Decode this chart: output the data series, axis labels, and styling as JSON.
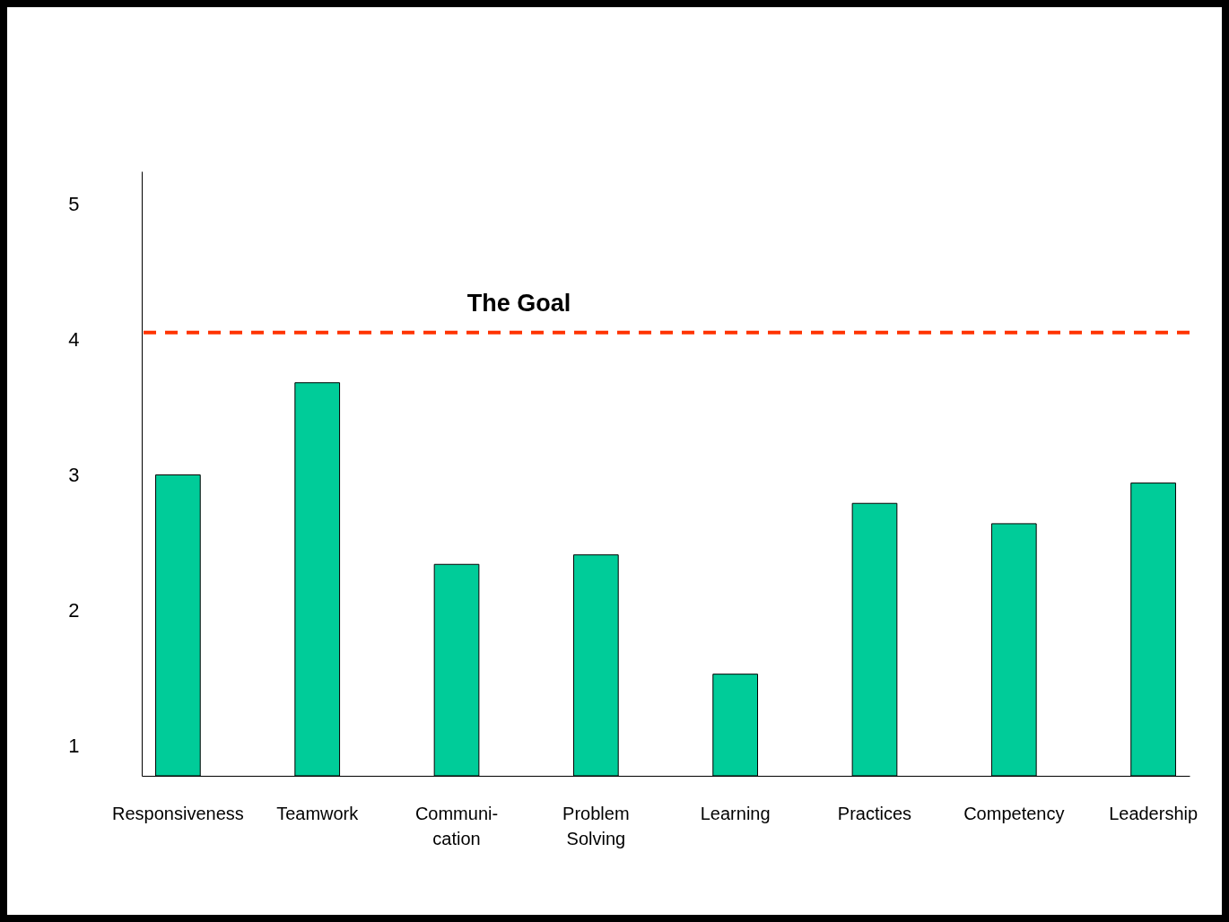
{
  "chart_data": {
    "type": "bar",
    "categories": [
      "Responsiveness",
      "Teamwork",
      "Communi-\ncation",
      "Problem\nSolving",
      "Learning",
      "Practices",
      "Competency",
      "Leadership"
    ],
    "values": [
      3.0,
      3.68,
      2.34,
      2.41,
      1.53,
      2.79,
      2.64,
      2.94
    ],
    "color": "#00cc99",
    "ylim": [
      0.78,
      5.24
    ],
    "yticks": [
      1,
      2,
      3,
      4,
      5
    ],
    "grid": false,
    "ref_lines": [
      {
        "axis": "y",
        "value": 4.05,
        "label": "The Goal",
        "color": "#ff3300",
        "line_style": "dashed"
      }
    ]
  }
}
